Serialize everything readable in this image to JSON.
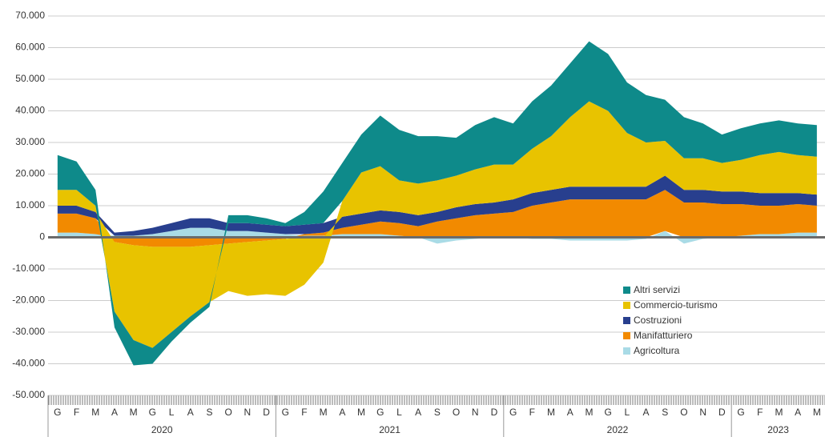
{
  "chart_data": {
    "type": "stacked-area",
    "categories": [
      "G",
      "F",
      "M",
      "A",
      "M",
      "G",
      "L",
      "A",
      "S",
      "O",
      "N",
      "D",
      "G",
      "F",
      "M",
      "A",
      "M",
      "G",
      "L",
      "A",
      "S",
      "O",
      "N",
      "D",
      "G",
      "F",
      "M",
      "A",
      "M",
      "G",
      "L",
      "A",
      "S",
      "O",
      "N",
      "D",
      "G",
      "F",
      "M",
      "A",
      "M"
    ],
    "years": [
      {
        "label": "2020",
        "months": 12
      },
      {
        "label": "2021",
        "months": 12
      },
      {
        "label": "2022",
        "months": 12
      },
      {
        "label": "2023",
        "months": 5
      }
    ],
    "series": [
      {
        "name": "Agricoltura",
        "color": "#a9dbe6",
        "values": [
          1500,
          1500,
          1000,
          500,
          500,
          1000,
          2000,
          3000,
          3000,
          2000,
          2000,
          1500,
          1000,
          500,
          500,
          1000,
          1000,
          1000,
          500,
          0,
          -2000,
          -1000,
          -500,
          0,
          0,
          -500,
          -500,
          -1000,
          -1000,
          -1000,
          -1000,
          -500,
          2000,
          -2000,
          -500,
          0,
          500,
          1000,
          1000,
          1500,
          1500
        ]
      },
      {
        "name": "Manifatturiero",
        "color": "#f28a00",
        "values": [
          6000,
          6000,
          5000,
          -1500,
          -2500,
          -3000,
          -3000,
          -3000,
          -2500,
          -2000,
          -1500,
          -1000,
          -500,
          500,
          1000,
          2000,
          3000,
          4000,
          4000,
          3500,
          5000,
          6000,
          7000,
          7500,
          8000,
          10000,
          11000,
          12000,
          12000,
          12000,
          12000,
          12000,
          13000,
          11000,
          11000,
          10500,
          10000,
          9000,
          9000,
          9000,
          8500
        ]
      },
      {
        "name": "Costruzioni",
        "color": "#283f8e",
        "values": [
          2500,
          2500,
          2000,
          1000,
          1500,
          2000,
          2500,
          3000,
          3000,
          2500,
          2500,
          2500,
          2500,
          3000,
          3000,
          3500,
          3500,
          3500,
          3500,
          3500,
          3000,
          3500,
          3500,
          3500,
          4000,
          4000,
          4000,
          4000,
          4000,
          4000,
          4000,
          4000,
          4500,
          4000,
          4000,
          4000,
          4000,
          4000,
          4000,
          3500,
          3500
        ]
      },
      {
        "name": "Commercio-turismo",
        "color": "#e8c300",
        "values": [
          5000,
          5000,
          2000,
          -22000,
          -30000,
          -32000,
          -27000,
          -22000,
          -18000,
          -15000,
          -17000,
          -17000,
          -18000,
          -15000,
          -8000,
          5000,
          13000,
          14000,
          10000,
          10000,
          10000,
          10000,
          11000,
          12000,
          11000,
          14000,
          17000,
          22000,
          27000,
          24000,
          17000,
          14000,
          11000,
          10000,
          10000,
          9000,
          10000,
          12000,
          13000,
          12000,
          12000
        ]
      },
      {
        "name": "Altri servizi",
        "color": "#0e8a8a",
        "values": [
          11000,
          9000,
          5000,
          -5000,
          -8000,
          -5000,
          -3000,
          -2000,
          -1500,
          2500,
          2500,
          2000,
          1000,
          4000,
          10000,
          12000,
          12000,
          16000,
          16000,
          15000,
          14000,
          12000,
          14000,
          15000,
          13000,
          15000,
          16000,
          17000,
          19000,
          18000,
          16000,
          15000,
          13000,
          13000,
          11000,
          9000,
          10000,
          10000,
          10000,
          10000,
          10000
        ]
      }
    ],
    "ylim": [
      -50000,
      70000
    ],
    "yticks": [
      {
        "value": 70000,
        "label": "70.000"
      },
      {
        "value": 60000,
        "label": "60.000"
      },
      {
        "value": 50000,
        "label": "50.000"
      },
      {
        "value": 40000,
        "label": "40.000"
      },
      {
        "value": 30000,
        "label": "30.000"
      },
      {
        "value": 20000,
        "label": "20.000"
      },
      {
        "value": 10000,
        "label": "10.000"
      },
      0,
      {
        "value": -10000,
        "label": "-10.000"
      },
      {
        "value": -20000,
        "label": "-20.000"
      },
      {
        "value": -30000,
        "label": "-30.000"
      },
      {
        "value": -40000,
        "label": "-40.000"
      },
      {
        "value": -50000,
        "label": "-50.000"
      }
    ],
    "grid": true
  }
}
